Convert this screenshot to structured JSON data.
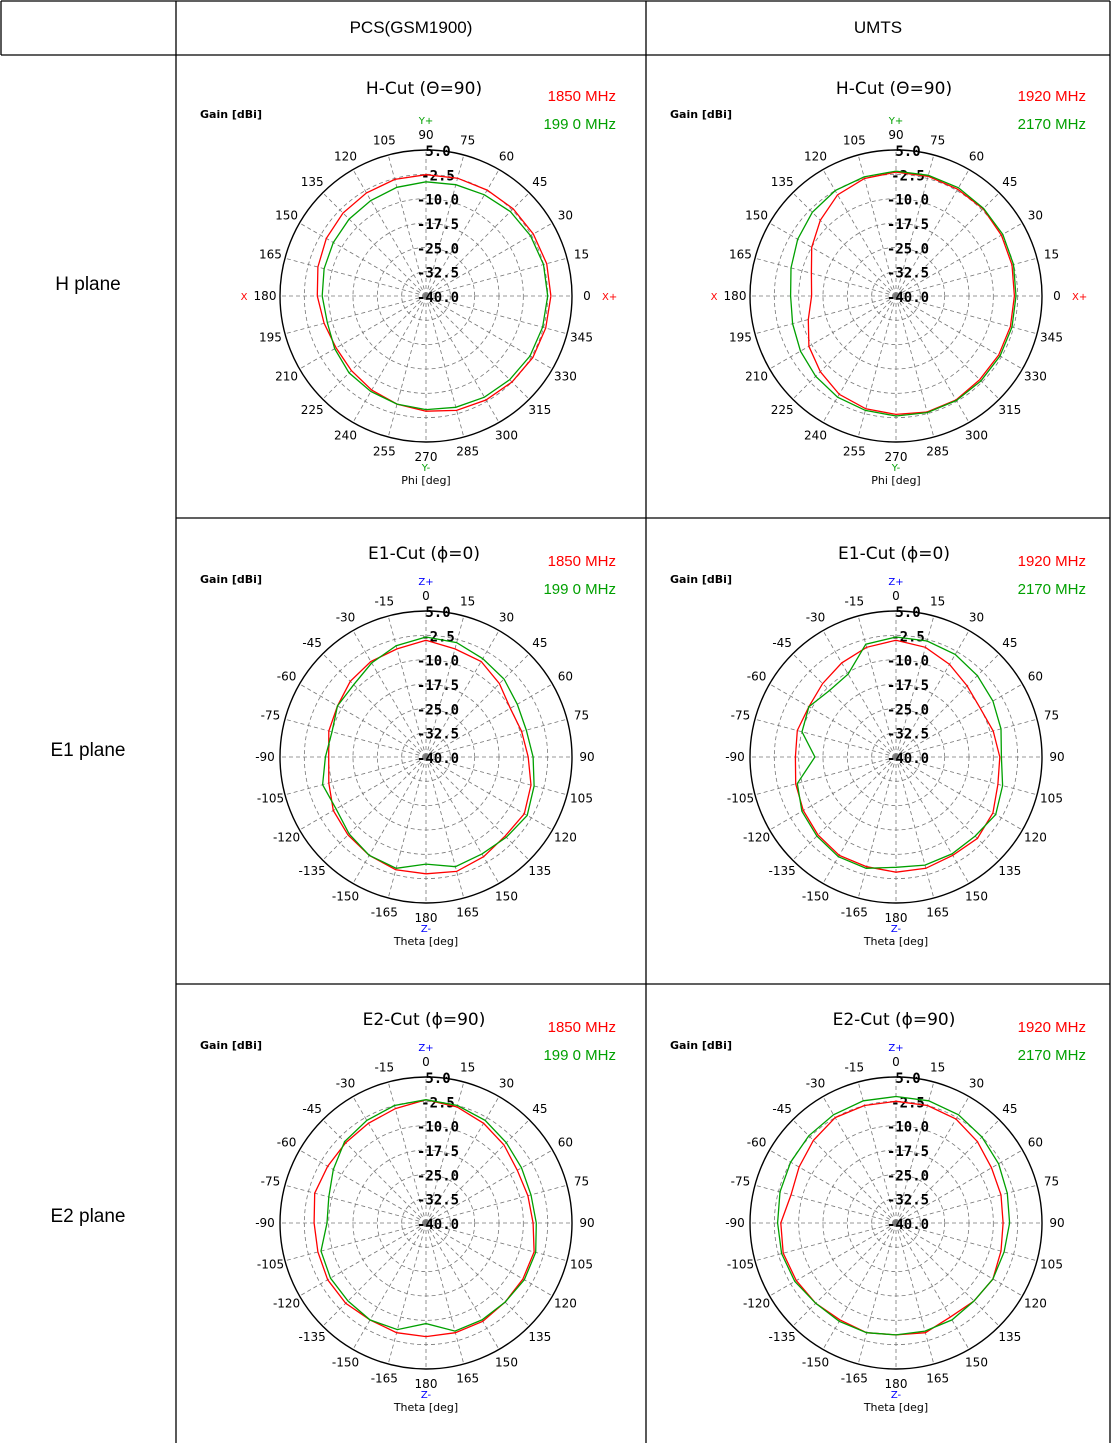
{
  "table": {
    "col_headers": [
      "",
      "PCS(GSM1900)",
      "UMTS"
    ],
    "row_labels": [
      "H plane",
      "E1 plane",
      "E2 plane"
    ]
  },
  "colors": {
    "low_band": "#ff0000",
    "high_band": "#00a000",
    "ref_h": "#00a000",
    "ref_e": "#0000ff",
    "ref_x": "#ff0000"
  },
  "chart_data": [
    {
      "type": "polar-line",
      "title": "H-Cut (Θ=90)",
      "ylabel": "Gain [dBi]",
      "xlabel": "Phi [deg]",
      "radial_range": [
        -40,
        5
      ],
      "radial_ticks": [
        "5.0",
        "-2.5",
        "-10.0",
        "-17.5",
        "-25.0",
        "-32.5",
        "-40.0"
      ],
      "angle_ticks": [
        "0",
        "15",
        "30",
        "45",
        "60",
        "75",
        "90",
        "105",
        "120",
        "135",
        "150",
        "165",
        "180",
        "195",
        "210",
        "225",
        "240",
        "255",
        "270",
        "285",
        "300",
        "315",
        "330",
        "345"
      ],
      "ref_labels": {
        "top": "Y+",
        "bottom": "Y-",
        "left": "X",
        "right": "X+"
      },
      "series": [
        {
          "name": "1850  MHz",
          "values": [
            -1.5,
            -1.5,
            -1.8,
            -2.0,
            -2.3,
            -2.4,
            -2.6,
            -2.8,
            -3.3,
            -3.8,
            -4.5,
            -5.5,
            -6.5,
            -7.5,
            -8.0,
            -7.5,
            -6.5,
            -5.5,
            -4.5,
            -3.5,
            -3.0,
            -2.5,
            -2.0,
            -1.8
          ]
        },
        {
          "name": "199 0 MHz",
          "values": [
            -2.5,
            -2.5,
            -2.8,
            -3.2,
            -4.0,
            -4.5,
            -4.8,
            -5.3,
            -6.0,
            -6.5,
            -7.0,
            -7.5,
            -8.0,
            -8.5,
            -7.5,
            -6.5,
            -6.0,
            -5.5,
            -5.0,
            -4.5,
            -4.0,
            -3.5,
            -3.0,
            -2.8
          ]
        }
      ]
    },
    {
      "type": "polar-line",
      "title": "H-Cut (Θ=90)",
      "ylabel": "Gain [dBi]",
      "xlabel": "Phi [deg]",
      "radial_range": [
        -40,
        5
      ],
      "radial_ticks": [
        "5.0",
        "-2.5",
        "-10.0",
        "-17.5",
        "-25.0",
        "-32.5",
        "-40.0"
      ],
      "angle_ticks": [
        "0",
        "15",
        "30",
        "45",
        "60",
        "75",
        "90",
        "105",
        "120",
        "135",
        "150",
        "165",
        "180",
        "195",
        "210",
        "225",
        "240",
        "255",
        "270",
        "285",
        "300",
        "315",
        "330",
        "345"
      ],
      "ref_labels": {
        "top": "Y+",
        "bottom": "Y-",
        "left": "X",
        "right": "X+"
      },
      "series": [
        {
          "name": "1920  MHz",
          "values": [
            -3.5,
            -3.0,
            -2.5,
            -2.0,
            -2.0,
            -1.8,
            -1.8,
            -2.5,
            -4.0,
            -7.0,
            -10.0,
            -13.0,
            -14.0,
            -12.0,
            -9.0,
            -7.0,
            -5.0,
            -4.0,
            -3.5,
            -3.0,
            -3.0,
            -3.5,
            -3.5,
            -3.5
          ]
        },
        {
          "name": "2170  MHz",
          "values": [
            -3.0,
            -2.5,
            -2.0,
            -1.8,
            -1.5,
            -1.5,
            -1.5,
            -2.0,
            -2.5,
            -3.5,
            -5.0,
            -6.5,
            -7.5,
            -7.0,
            -6.0,
            -5.0,
            -4.0,
            -3.5,
            -3.0,
            -2.8,
            -2.8,
            -3.0,
            -3.0,
            -3.0
          ]
        }
      ]
    },
    {
      "type": "polar-line",
      "title": "E1-Cut (ϕ=0)",
      "ylabel": "Gain [dBi]",
      "xlabel": "Theta [deg]",
      "radial_range": [
        -40,
        5
      ],
      "radial_ticks": [
        "5.0",
        "-2.5",
        "-10.0",
        "-17.5",
        "-25.0",
        "-32.5",
        "-40.0"
      ],
      "angle_ticks": [
        "0",
        "15",
        "30",
        "45",
        "60",
        "75",
        "90",
        "105",
        "120",
        "135",
        "150",
        "165",
        "180",
        "-165",
        "-150",
        "-135",
        "-120",
        "-105",
        "-90",
        "-75",
        "-60",
        "-45",
        "-30",
        "-15"
      ],
      "ref_labels": {
        "top": "Z+",
        "bottom": "Z-",
        "left": "",
        "right": ""
      },
      "series": [
        {
          "name": "1850  MHz",
          "values": [
            -4.0,
            -5.5,
            -6.0,
            -8.0,
            -10.0,
            -9.5,
            -8.5,
            -6.5,
            -5.0,
            -5.5,
            -4.5,
            -3.5,
            -4.0,
            -4.0,
            -5.0,
            -6.0,
            -7.0,
            -9.0,
            -10.0,
            -9.0,
            -8.5,
            -7.0,
            -6.0,
            -5.5
          ]
        },
        {
          "name": "199 0 MHz",
          "values": [
            -3.0,
            -3.5,
            -5.0,
            -6.0,
            -7.5,
            -8.0,
            -7.0,
            -5.5,
            -4.0,
            -5.0,
            -5.5,
            -5.0,
            -7.0,
            -4.5,
            -5.0,
            -6.5,
            -8.0,
            -7.0,
            -9.0,
            -10.0,
            -8.5,
            -8.5,
            -6.5,
            -4.5
          ]
        }
      ]
    },
    {
      "type": "polar-line",
      "title": "E1-Cut (ϕ=0)",
      "ylabel": "Gain [dBi]",
      "xlabel": "Theta [deg]",
      "radial_range": [
        -40,
        5
      ],
      "radial_ticks": [
        "5.0",
        "-2.5",
        "-10.0",
        "-17.5",
        "-25.0",
        "-32.5",
        "-40.0"
      ],
      "angle_ticks": [
        "0",
        "15",
        "30",
        "45",
        "60",
        "75",
        "90",
        "105",
        "120",
        "135",
        "150",
        "165",
        "180",
        "-165",
        "-150",
        "-135",
        "-120",
        "-105",
        "-90",
        "-75",
        "-60",
        "-45",
        "-30",
        "-15"
      ],
      "ref_labels": {
        "top": "Z+",
        "bottom": "Z-",
        "left": "",
        "right": ""
      },
      "series": [
        {
          "name": "1920  MHz",
          "values": [
            -4.0,
            -5.0,
            -7.0,
            -9.0,
            -10.0,
            -9.0,
            -8.0,
            -7.5,
            -5.5,
            -4.5,
            -5.0,
            -4.5,
            -4.5,
            -5.0,
            -5.0,
            -6.0,
            -7.0,
            -8.0,
            -9.0,
            -8.5,
            -9.0,
            -8.0,
            -6.5,
            -5.0
          ]
        },
        {
          "name": "2170  MHz",
          "values": [
            -3.0,
            -3.0,
            -3.5,
            -4.5,
            -5.5,
            -6.5,
            -7.5,
            -6.0,
            -4.5,
            -5.5,
            -5.5,
            -5.5,
            -6.0,
            -4.5,
            -4.5,
            -5.5,
            -6.5,
            -8.5,
            -15.0,
            -10.0,
            -9.0,
            -11.0,
            -10.5,
            -4.0
          ]
        }
      ]
    },
    {
      "type": "polar-line",
      "title": "E2-Cut (ϕ=90)",
      "ylabel": "Gain [dBi]",
      "xlabel": "Theta [deg]",
      "radial_range": [
        -40,
        5
      ],
      "radial_ticks": [
        "5.0",
        "-2.5",
        "-10.0",
        "-17.5",
        "-25.0",
        "-32.5",
        "-40.0"
      ],
      "angle_ticks": [
        "0",
        "15",
        "30",
        "45",
        "60",
        "75",
        "90",
        "105",
        "120",
        "135",
        "150",
        "165",
        "180",
        "-165",
        "-150",
        "-135",
        "-120",
        "-105",
        "-90",
        "-75",
        "-60",
        "-45",
        "-30",
        "-15"
      ],
      "ref_labels": {
        "top": "Z+",
        "bottom": "Z-",
        "left": "",
        "right": ""
      },
      "series": [
        {
          "name": "1850  MHz",
          "values": [
            -2.0,
            -3.0,
            -4.5,
            -6.0,
            -7.5,
            -7.5,
            -7.0,
            -5.5,
            -5.5,
            -5.5,
            -5.0,
            -5.0,
            -5.0,
            -5.0,
            -5.5,
            -5.0,
            -5.0,
            -5.5,
            -5.5,
            -4.5,
            -5.0,
            -5.0,
            -4.5,
            -3.5
          ]
        },
        {
          "name": "199 0 MHz",
          "values": [
            -2.0,
            -2.5,
            -3.5,
            -5.0,
            -6.0,
            -6.5,
            -6.0,
            -5.0,
            -5.0,
            -5.5,
            -5.5,
            -5.5,
            -9.0,
            -6.0,
            -5.5,
            -6.0,
            -6.0,
            -6.5,
            -9.5,
            -9.0,
            -7.0,
            -4.5,
            -3.5,
            -2.5
          ]
        }
      ]
    },
    {
      "type": "polar-line",
      "title": "E2-Cut (ϕ=90)",
      "ylabel": "Gain [dBi]",
      "xlabel": "Theta [deg]",
      "radial_range": [
        -40,
        5
      ],
      "radial_ticks": [
        "5.0",
        "-2.5",
        "-10.0",
        "-17.5",
        "-25.0",
        "-32.5",
        "-40.0"
      ],
      "angle_ticks": [
        "0",
        "15",
        "30",
        "45",
        "60",
        "75",
        "90",
        "105",
        "120",
        "135",
        "150",
        "165",
        "180",
        "-165",
        "-150",
        "-135",
        "-120",
        "-105",
        "-90",
        "-75",
        "-60",
        "-45",
        "-30",
        "-15"
      ],
      "ref_labels": {
        "top": "Z+",
        "bottom": "Z-",
        "left": "",
        "right": ""
      },
      "series": [
        {
          "name": "1920  MHz",
          "values": [
            -2.5,
            -2.5,
            -3.0,
            -4.5,
            -6.0,
            -6.5,
            -7.0,
            -6.5,
            -5.5,
            -6.0,
            -6.5,
            -5.0,
            -5.5,
            -5.0,
            -5.5,
            -5.0,
            -4.5,
            -4.0,
            -4.5,
            -6.5,
            -5.5,
            -4.0,
            -2.5,
            -2.5
          ]
        },
        {
          "name": "2170  MHz",
          "values": [
            -1.0,
            -1.0,
            -1.5,
            -2.5,
            -3.5,
            -4.5,
            -5.0,
            -5.5,
            -5.5,
            -6.0,
            -5.5,
            -5.5,
            -5.5,
            -5.0,
            -5.0,
            -5.0,
            -4.0,
            -3.5,
            -3.5,
            -3.0,
            -2.5,
            -2.0,
            -1.5,
            -1.0
          ]
        }
      ]
    }
  ]
}
